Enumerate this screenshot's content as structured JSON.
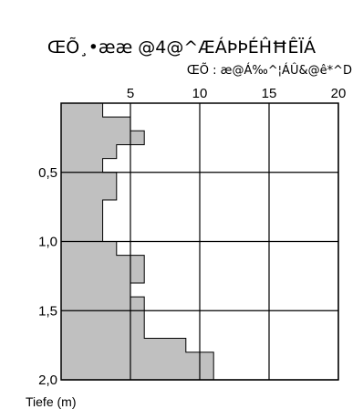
{
  "chart_data": {
    "type": "area",
    "title": "ŒÕ¸•ææ @4@^ÆÁÞÞÉĤĦÊÏÁ",
    "xlabel": "ŒÕ : æ@Á‰^¦ÁÛ&@ê*^D",
    "ylabel": "Tiefe (m)",
    "xlim": [
      0,
      20
    ],
    "ylim": [
      2.0,
      0.0
    ],
    "x_ticks": [
      5,
      10,
      15,
      20
    ],
    "x_tick_labels": [
      "5",
      "10",
      "15",
      "20"
    ],
    "y_ticks": [
      0.5,
      1.0,
      1.5,
      2.0
    ],
    "y_tick_labels": [
      "0,5",
      "1,0",
      "1,5",
      "2,0"
    ],
    "grid": true,
    "orientation": "vertical-depth-profile",
    "fill_color": "#c0c0c0",
    "step_profile": [
      {
        "depth_from": 0.0,
        "depth_to": 0.1,
        "value": 3
      },
      {
        "depth_from": 0.1,
        "depth_to": 0.2,
        "value": 5
      },
      {
        "depth_from": 0.2,
        "depth_to": 0.3,
        "value": 6
      },
      {
        "depth_from": 0.3,
        "depth_to": 0.4,
        "value": 4
      },
      {
        "depth_from": 0.4,
        "depth_to": 0.5,
        "value": 3
      },
      {
        "depth_from": 0.5,
        "depth_to": 0.6,
        "value": 4
      },
      {
        "depth_from": 0.6,
        "depth_to": 0.7,
        "value": 4
      },
      {
        "depth_from": 0.7,
        "depth_to": 0.8,
        "value": 3
      },
      {
        "depth_from": 0.8,
        "depth_to": 0.9,
        "value": 3
      },
      {
        "depth_from": 0.9,
        "depth_to": 1.0,
        "value": 3
      },
      {
        "depth_from": 1.0,
        "depth_to": 1.1,
        "value": 4
      },
      {
        "depth_from": 1.1,
        "depth_to": 1.2,
        "value": 6
      },
      {
        "depth_from": 1.2,
        "depth_to": 1.3,
        "value": 6
      },
      {
        "depth_from": 1.3,
        "depth_to": 1.4,
        "value": 5
      },
      {
        "depth_from": 1.4,
        "depth_to": 1.5,
        "value": 6
      },
      {
        "depth_from": 1.5,
        "depth_to": 1.6,
        "value": 6
      },
      {
        "depth_from": 1.6,
        "depth_to": 1.7,
        "value": 6
      },
      {
        "depth_from": 1.7,
        "depth_to": 1.8,
        "value": 9
      },
      {
        "depth_from": 1.8,
        "depth_to": 1.9,
        "value": 11
      },
      {
        "depth_from": 1.9,
        "depth_to": 2.0,
        "value": 11
      }
    ]
  }
}
